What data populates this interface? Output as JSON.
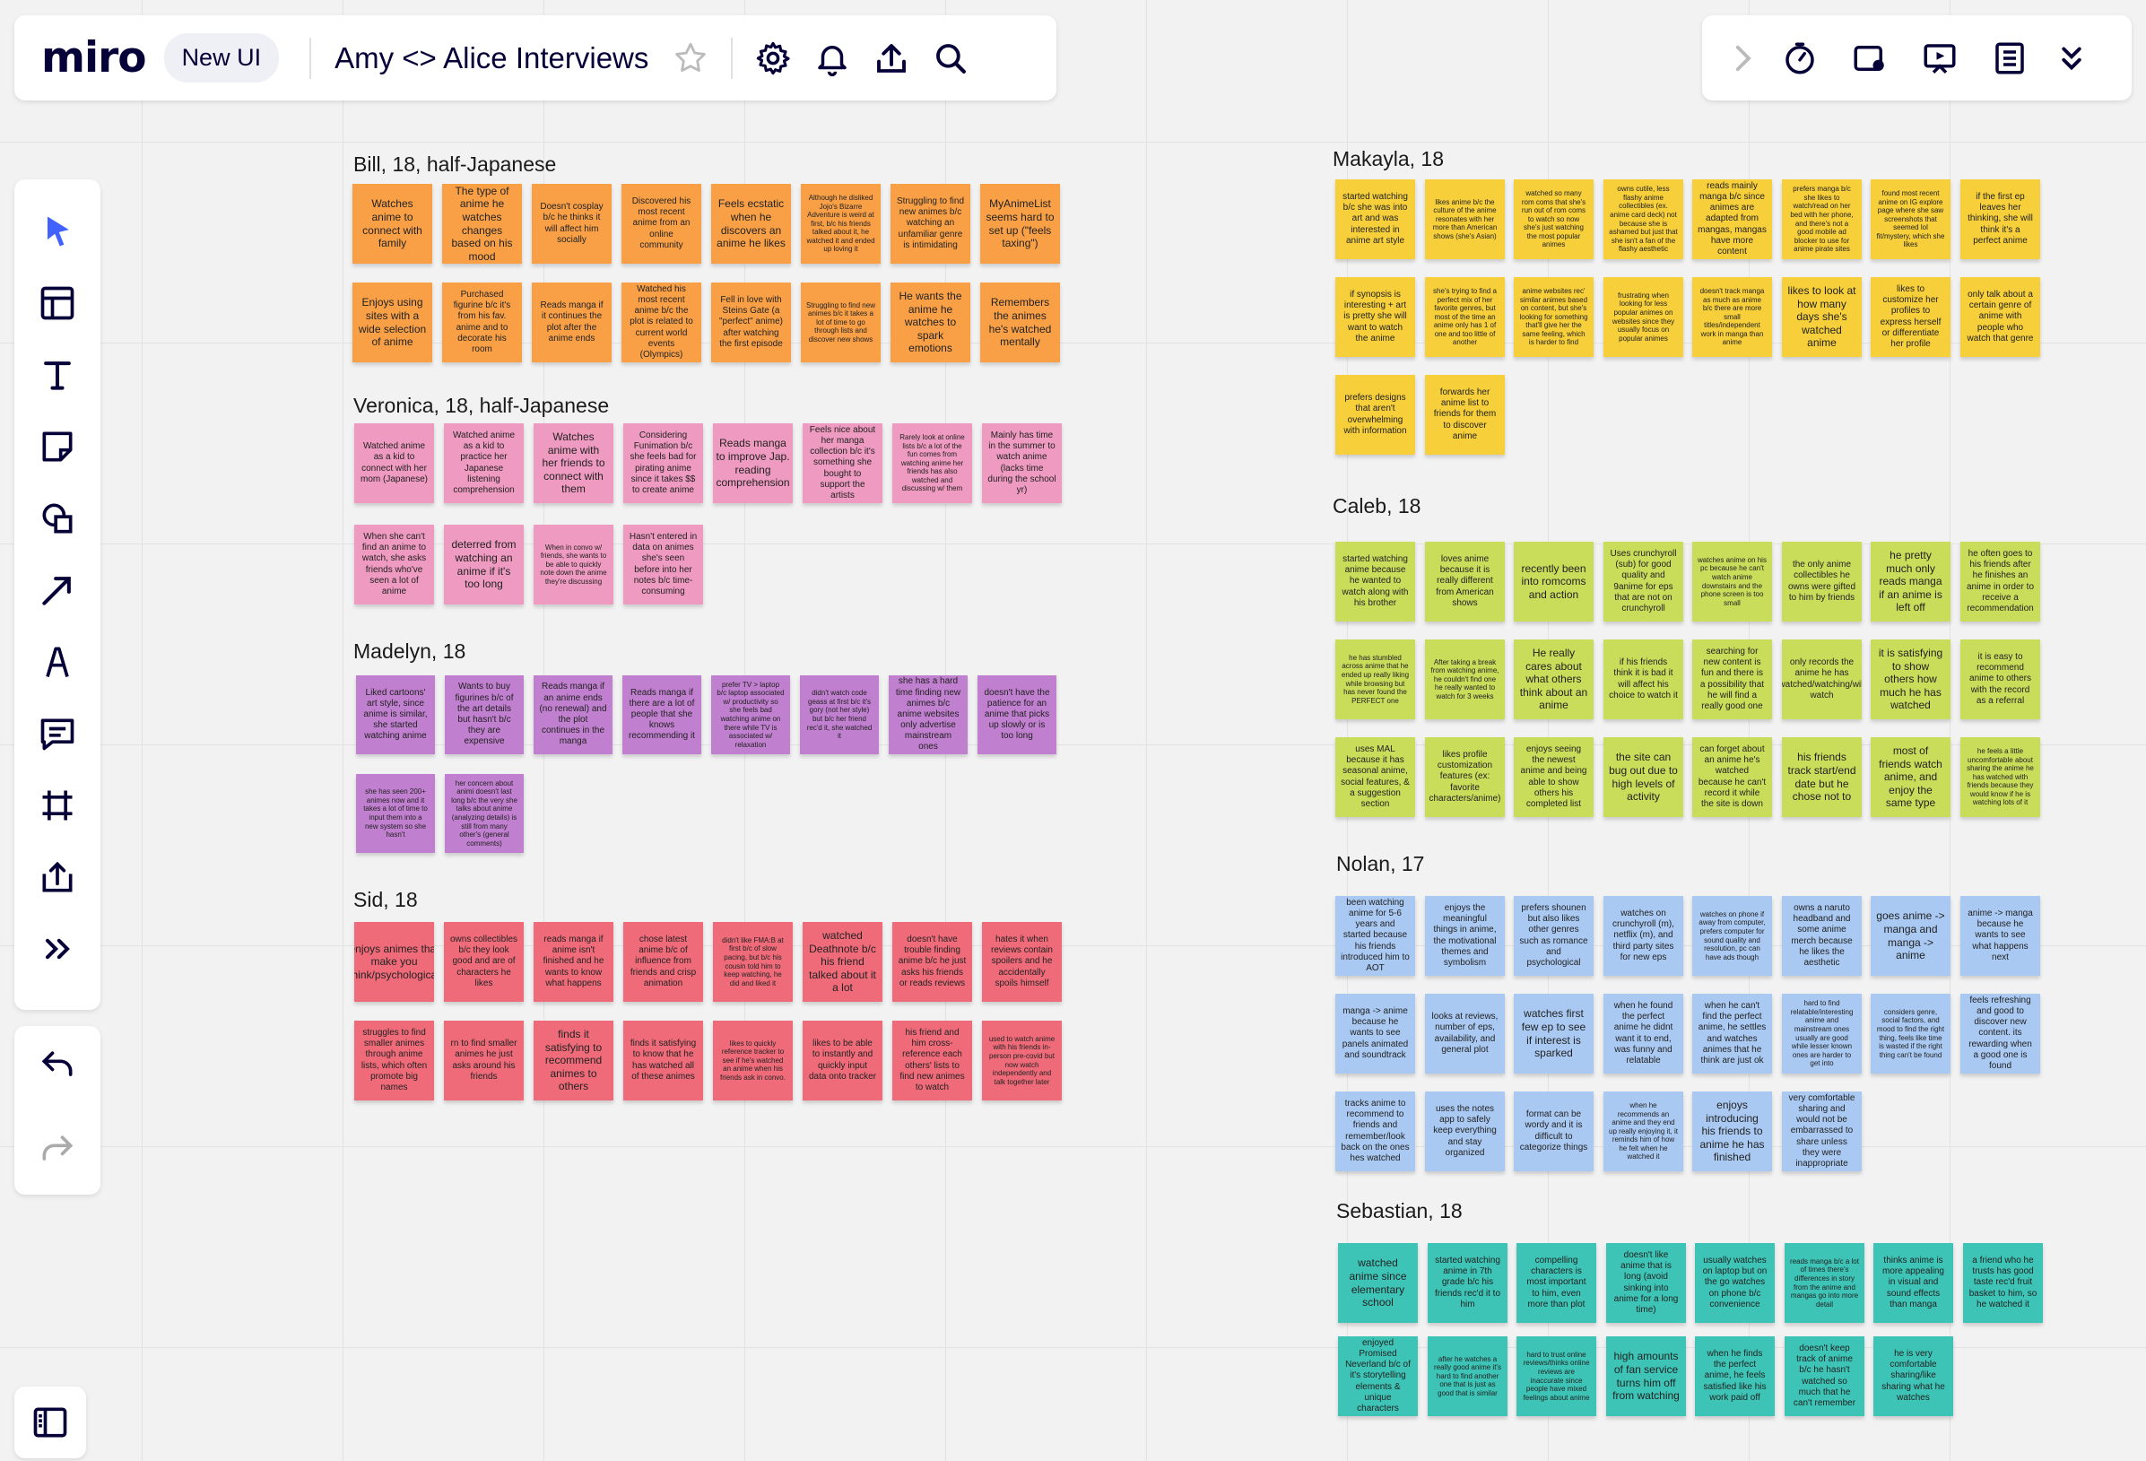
{
  "topbar": {
    "logo": "miro",
    "badge": "New UI",
    "board_title": "Amy <> Alice Interviews",
    "icons": [
      "star-icon",
      "gear-icon",
      "bell-icon",
      "upload-icon",
      "search-icon"
    ]
  },
  "rightbar": {
    "icons": [
      "chevron-right-icon",
      "timer-icon",
      "record-icon",
      "present-icon",
      "notes-icon",
      "chevron-double-down-icon"
    ]
  },
  "toolbar": {
    "icons": [
      "cursor-icon",
      "template-icon",
      "text-icon",
      "sticky-note-icon",
      "shapes-icon",
      "arrow-icon",
      "pen-icon",
      "comment-icon",
      "frame-icon",
      "upload-icon",
      "more-icon"
    ]
  },
  "undobar": {
    "icons": [
      "undo-icon",
      "redo-icon"
    ]
  },
  "colors": {
    "orange": "#f9a047",
    "pink": "#ef9ac0",
    "purple": "#c07fcf",
    "red": "#ef6b79",
    "yellow": "#f6cf3a",
    "lime": "#c9dd5a",
    "blue": "#a9c9f2",
    "teal": "#3dc4b6"
  },
  "groups": [
    {
      "title": "Bill, 18, half-Japanese",
      "color": "orange",
      "notes": [
        "Watches anime to connect with family",
        "The type of anime he watches changes based on his mood",
        "Doesn't cosplay b/c he thinks it will affect him socially",
        "Discovered his most recent anime from an online community",
        "Feels ecstatic when he discovers an anime he likes",
        "Although he disliked Jojo's Bizarre Adventure is weird at first, b/c his friends talked about it, he watched it and ended up loving it",
        "Struggling to find new animes b/c watching an unfamiliar genre is intimidating",
        "MyAnimeList seems hard to set up (\"feels taxing\")",
        "Enjoys using sites with a wide selection of anime",
        "Purchased figurine b/c it's from his fav. anime and to decorate his room",
        "Reads manga if it continues the plot after the anime ends",
        "Watched his most recent anime b/c the plot is related to current world events (Olympics)",
        "Fell in love with Steins Gate (a \"perfect\" anime) after watching the first episode",
        "Struggling to find new animes b/c it takes a lot of time to go through lists and discover new shows",
        "He wants the anime he watches to spark emotions",
        "Remembers the animes he's watched mentally"
      ]
    },
    {
      "title": "Veronica, 18, half-Japanese",
      "color": "pink",
      "notes": [
        "Watched anime as a kid to connect with her mom (Japanese)",
        "Watched anime as a kid to practice her Japanese listening comprehension",
        "Watches anime with her friends to connect with them",
        "Considering Funimation b/c she feels bad for pirating anime since it takes $$ to create anime",
        "Reads manga to improve Jap. reading comprehension",
        "Feels nice about her manga collection b/c it's something she bought to support the artists",
        "Rarely look at online lists b/c a lot of the fun comes from watching anime her friends has also watched and discussing w/ them",
        "Mainly has time in the summer to watch anime (lacks time during the school yr)",
        "When she can't find an anime to watch, she asks friends who've seen a lot of anime",
        "deterred from watching an anime if it's too long",
        "When in convo w/ friends, she wants to be able to quickly note down the anime they're discussing",
        "Hasn't entered in data on animes she's seen before into her notes b/c time-consuming"
      ]
    },
    {
      "title": "Madelyn, 18",
      "color": "purple",
      "notes": [
        "Liked cartoons' art style, since anime is similar, she started watching anime",
        "Wants to buy figurines b/c of the art details but hasn't b/c they are expensive",
        "Reads manga if an anime ends (no renewal) and the plot continues in the manga",
        "Reads manga if there are a lot of people that she knows recommending it",
        "prefer TV > laptop b/c laptop associated w/ productivity so she feels bad watching anime on there while TV is associated w/ relaxation",
        "didn't watch code geass at first b/c it's gory (not her style) but b/c her friend rec'd it, she watched it",
        "she has a hard time finding new animes b/c anime websites only advertise mainstream ones",
        "doesn't have the patience for an anime that picks up slowly or is too long",
        "she has seen 200+ animes now and it takes a lot of time to input them into a new system so she hasn't",
        "her concern about animi doesn't last long b/c the very she talks about anime (analyzing details) is still from many other's (general comments)"
      ]
    },
    {
      "title": "Sid, 18",
      "color": "red",
      "notes": [
        "enjoys animes that make you think/psychological",
        "owns collectibles b/c they look good and are of characters he likes",
        "reads manga if anime isn't finished and he wants to know what happens",
        "chose latest anime b/c of influence from friends and crisp animation",
        "didn't like FMA:B at first b/c of slow pacing, but b/c his cousin told him to keep watching, he did and liked it",
        "watched Deathnote b/c his friend talked about it a lot",
        "doesn't have trouble finding anime b/c he just asks his friends or reads reviews",
        "hates it when reviews contain spoilers and he accidentally spoils himself",
        "struggles to find smaller animes through anime lists, which often promote big names",
        "rn to find smaller animes he just asks around his friends",
        "finds it satisfying to recommend animes to others",
        "finds it satisfying to know that he has watched all of these animes",
        "likes to quickly reference tracker to see if he's watched an anime when his friends ask in convo.",
        "likes to be able to instantly and quickly input data onto tracker",
        "his friend and him cross-reference each others' lists to find new animes to watch",
        "used to watch anime with his friends in-person pre-covid but now watch independently and talk together later"
      ]
    },
    {
      "title": "Makayla, 18",
      "color": "yellow",
      "notes": [
        "started watching b/c she was into art and was interested in anime art style",
        "likes anime b/c the culture of the anime resonates with her more than American shows (she's Asian)",
        "watched so many rom coms that she's run out of rom coms to watch so now she's just watching the most popular animes",
        "owns cutile, less flashy anime collectibles (ex. anime card deck) not because she is ashamed but just that she isn't a fan of the flashy aesthetic",
        "reads mainly manga b/c since animes are adapted from mangas, mangas have more content",
        "prefers manga b/c she likes to watch/read on her bed with her phone, and there's not a good mobile ad blocker to use for anime pirate sites",
        "found most recent anime on IG explore page where she saw screenshots that seemed lol fit/mystery, which she likes",
        "if the first ep leaves her thinking, she will think it's a perfect anime",
        "if synopsis is interesting + art is pretty she will want to watch the anime",
        "she's trying to find a perfect mix of her favorite genres, but most of the time an anime only has 1 of one and too little of another",
        "anime websites rec' similar animes based on content, but she's looking for something that'll give her the same feeling, which is harder to find",
        "frustrating when looking for less popular animes on websites since they usually focus on popular animes",
        "doesn't track manga as much as anime b/c there are more small titles/independent work in manga than anime",
        "likes to look at how many days she's watched anime",
        "likes to customize her profiles to express herself or differentiate her profile",
        "only talk about a certain genre of anime with people who watch that genre",
        "prefers designs that aren't overwhelming with information",
        "forwards her anime list to friends for them to discover anime"
      ]
    },
    {
      "title": "Caleb, 18",
      "color": "lime",
      "notes": [
        "started watching anime because he wanted to watch along with his brother",
        "loves anime because it is really different from American shows",
        "recently been into romcoms and action",
        "Uses crunchyroll (sub) for good quality and 9anime for eps that are not on crunchyroll",
        "watches anime on his pc because he can't watch anime downstairs and the phone screen is too small",
        "the only anime collectibles he owns were gifted to him by friends",
        "he pretty much only reads manga if an anime is left off",
        "he often goes to his friends after he finishes an anime in order to receive a recommendation",
        "he has stumbled across anime that he ended up really liking while browsing but has never found the PERFECT one",
        "After taking a break from watching anime, he couldn't find one he really wanted to watch for 3 weeks",
        "He really cares about what others think about an anime",
        "if his friends think it is bad it will affect his choice to watch it",
        "searching for new content is fun and there is a possibility that he will find a really good one",
        "only records the anime he has watched/watching/will watch",
        "it is satisfying to show others how much he has watched",
        "it is easy to recommend anime to others with the record as a referral",
        "uses MAL because it has seasonal anime, social features, & a suggestion section",
        "likes profile customization features (ex: favorite characters/anime)",
        "enjoys seeing the newest anime and being able to show others his completed list",
        "the site can bug out due to high levels of activity",
        "can forget about an anime he's watched because he can't record it while the site is down",
        "his friends track start/end date but he chose not to",
        "most of friends watch anime, and enjoy the same type",
        "he feels a little uncomfortable about sharing the anime he has watched with friends because they would know if he is watching lots of it"
      ]
    },
    {
      "title": "Nolan, 17",
      "color": "blue",
      "notes": [
        "been watching anime for 5-6 years and started because his friends introduced him to AOT",
        "enjoys the meaningful things in anime, the motivational themes and symbolism",
        "prefers shounen but also likes other genres such as romance and psychological",
        "watches on crunchyroll (m), netflix (m), and third party sites for new eps",
        "watches on phone if away from computer, prefers computer for sound quality and resolution, pc can have ads though",
        "owns a naruto headband and some anime merch because he likes the aesthetic",
        "goes anime -> manga and manga -> anime",
        "anime -> manga because he wants to see what happens next",
        "manga -> anime because he wants to see panels animated and soundtrack",
        "looks at reviews, number of eps, availability, and general plot",
        "watches first few ep to see if interest is sparked",
        "when he found the perfect anime he didnt want it to end, was funny and relatable",
        "when he can't find the perfect anime, he settles and watches animes that he think are just ok",
        "hard to find relatable/interesting anime and mainstream ones usually are good while lesser known ones are harder to get into",
        "considers genre, social factors, and mood to find the right thing, feels like time is wasted if the right thing can't be found",
        "feels refreshing and good to discover new content. its rewarding when a good one is found",
        "tracks anime to recommend to friends and remember/look back on the ones hes watched",
        "uses the notes app to safely keep everything and stay organized",
        "format can be wordy and it is difficult to categorize things",
        "when he recommends an anime and they end up really enjoying it, it reminds him of how he felt when he watched it",
        "enjoys introducing his friends to anime he has finished",
        "very comfortable sharing and would not be embarrassed to share unless they were inappropriate"
      ]
    },
    {
      "title": "Sebastian, 18",
      "color": "teal",
      "notes": [
        "watched anime since elementary school",
        "started watching anime in 7th grade b/c his friends rec'd it to him",
        "compelling characters is most important to him, even more than plot",
        "doesn't like anime that is long (avoid sinking into anime for a long time)",
        "usually watches on laptop but on the go watches on phone b/c convenience",
        "reads manga b/c a lot of times there's differences in story from the anime and mangas go into more detail",
        "thinks anime is more appealing in visual and sound effects than manga",
        "a friend who he trusts has good taste rec'd fruit basket to him, so he watched it",
        "enjoyed Promised Neverland b/c of it's storytelling elements & unique characters",
        "after he watches a really good anime it's hard to find another one that is just as good that is similar",
        "hard to trust online reviews/thinks online reviews are inaccurate since people have mixed feelings about anime",
        "high amounts of fan service turns him off from watching",
        "when he finds the perfect anime, he feels satisfied like his work paid off",
        "doesn't keep track of anime b/c he hasn't watched so much that he can't remember",
        "he is very comfortable sharing/like sharing what he watches"
      ]
    }
  ]
}
